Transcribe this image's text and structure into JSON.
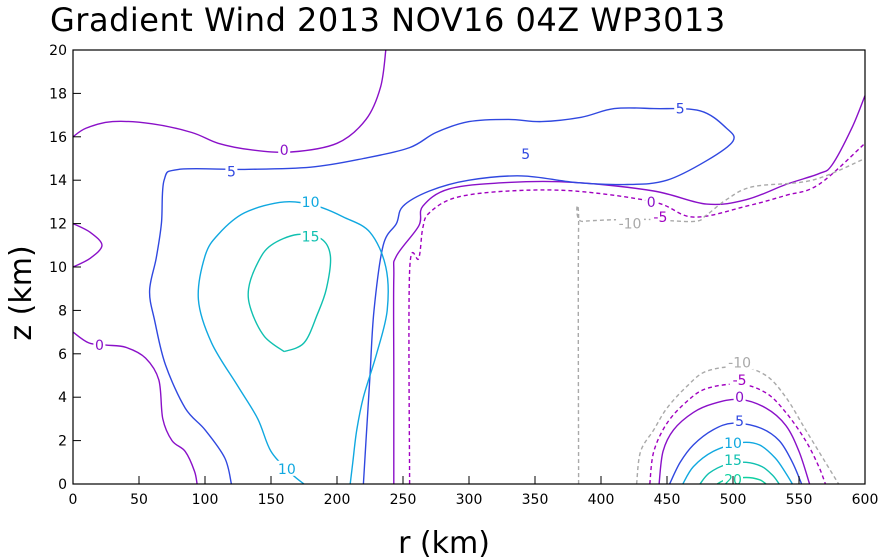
{
  "chart_data": {
    "type": "contour",
    "title": "Gradient Wind 2013 NOV16 04Z  WP3013",
    "xlabel": "r (km)",
    "ylabel": "z (km)",
    "xlim": [
      0,
      600
    ],
    "ylim": [
      0,
      20
    ],
    "xticks": [
      "0",
      "50",
      "100",
      "150",
      "200",
      "250",
      "300",
      "350",
      "400",
      "450",
      "500",
      "550",
      "600"
    ],
    "yticks": [
      "0",
      "2",
      "4",
      "6",
      "8",
      "10",
      "12",
      "14",
      "16",
      "18",
      "20"
    ],
    "levels": [
      -10,
      -5,
      0,
      5,
      10,
      15,
      20
    ],
    "level_colors": {
      "-10": "#a9a9a9",
      "-5": "#a000c0",
      "0": "#8a10c8",
      "5": "#3048e0",
      "10": "#10a8e0",
      "15": "#10c0b0",
      "20": "#10d0a0"
    },
    "contours": [
      {
        "level": 0,
        "label": "0",
        "dashed": false,
        "color": "#8a10c8",
        "points": [
          [
            0,
            16
          ],
          [
            10,
            16.4
          ],
          [
            30,
            16.7
          ],
          [
            60,
            16.6
          ],
          [
            90,
            16.2
          ],
          [
            110,
            15.7
          ],
          [
            135,
            15.4
          ],
          [
            165,
            15.3
          ],
          [
            200,
            15.7
          ],
          [
            222,
            16.8
          ],
          [
            233,
            18.3
          ],
          [
            237,
            20
          ]
        ],
        "labels": [
          {
            "text": "0",
            "x": 160,
            "y": 15.4
          }
        ]
      },
      {
        "level": 0,
        "label": "0",
        "dashed": false,
        "color": "#8a10c8",
        "points": [
          [
            0,
            12.0
          ],
          [
            13,
            11.6
          ],
          [
            22,
            11.0
          ],
          [
            13,
            10.4
          ],
          [
            0,
            10.0
          ]
        ],
        "labels": []
      },
      {
        "level": 0,
        "label": "0",
        "dashed": false,
        "color": "#8a10c8",
        "points": [
          [
            0,
            7
          ],
          [
            12,
            6.5
          ],
          [
            25,
            6.4
          ],
          [
            40,
            6.3
          ],
          [
            55,
            5.8
          ],
          [
            65,
            4.8
          ],
          [
            68,
            3.0
          ],
          [
            75,
            2.0
          ],
          [
            85,
            1.5
          ],
          [
            92,
            0.6
          ],
          [
            94,
            0
          ]
        ],
        "labels": [
          {
            "text": "0",
            "x": 20,
            "y": 6.4
          }
        ]
      },
      {
        "level": 0,
        "label": "0",
        "dashed": false,
        "color": "#8a10c8",
        "points": [
          [
            243,
            0
          ],
          [
            243,
            5
          ],
          [
            243,
            9.5
          ],
          [
            245,
            10.5
          ],
          [
            262,
            11.9
          ],
          [
            265,
            12.8
          ],
          [
            285,
            13.6
          ],
          [
            330,
            13.9
          ],
          [
            380,
            13.9
          ],
          [
            440,
            13.5
          ],
          [
            480,
            12.9
          ],
          [
            510,
            13.1
          ],
          [
            540,
            13.8
          ],
          [
            565,
            14.3
          ],
          [
            575,
            14.7
          ],
          [
            590,
            16.4
          ],
          [
            600,
            17.9
          ]
        ],
        "labels": [
          {
            "text": "0",
            "x": 438,
            "y": 13.0
          }
        ]
      },
      {
        "level": -5,
        "label": "-5",
        "dashed": true,
        "color": "#a000c0",
        "points": [
          [
            255,
            0
          ],
          [
            255,
            9.8
          ],
          [
            262,
            10.4
          ],
          [
            265,
            11.8
          ],
          [
            270,
            12.5
          ],
          [
            290,
            13.2
          ],
          [
            330,
            13.5
          ],
          [
            380,
            13.5
          ],
          [
            440,
            13.0
          ],
          [
            470,
            12.3
          ],
          [
            510,
            12.8
          ],
          [
            540,
            13.3
          ],
          [
            565,
            13.8
          ],
          [
            600,
            15.7
          ]
        ],
        "labels": [
          {
            "text": "-5",
            "x": 445,
            "y": 12.3
          }
        ]
      },
      {
        "level": -10,
        "label": "-10",
        "dashed": true,
        "color": "#a9a9a9",
        "points": [
          [
            383,
            0
          ],
          [
            383,
            11.9
          ],
          [
            386,
            12.1
          ],
          [
            430,
            12.2
          ],
          [
            470,
            12.1
          ],
          [
            480,
            12.4
          ],
          [
            495,
            13.1
          ],
          [
            515,
            13.7
          ],
          [
            560,
            14.0
          ],
          [
            600,
            15.0
          ]
        ],
        "labels": [
          {
            "text": "-10",
            "x": 422,
            "y": 12.0
          }
        ]
      },
      {
        "level": 5,
        "label": "5",
        "dashed": false,
        "color": "#3048e0",
        "points": [
          [
            120,
            0
          ],
          [
            115,
            1.2
          ],
          [
            100,
            2.5
          ],
          [
            85,
            3.5
          ],
          [
            70,
            5.5
          ],
          [
            62,
            7.5
          ],
          [
            58,
            8.9
          ],
          [
            63,
            10.4
          ],
          [
            67,
            12.0
          ],
          [
            69,
            14.0
          ],
          [
            80,
            14.5
          ],
          [
            130,
            14.5
          ],
          [
            180,
            14.6
          ],
          [
            220,
            15.0
          ],
          [
            255,
            15.5
          ],
          [
            275,
            16.2
          ],
          [
            300,
            16.7
          ],
          [
            330,
            16.8
          ],
          [
            355,
            16.7
          ],
          [
            385,
            16.9
          ],
          [
            410,
            17.3
          ],
          [
            440,
            17.3
          ],
          [
            475,
            17.2
          ],
          [
            495,
            16.4
          ],
          [
            500,
            15.8
          ],
          [
            480,
            14.9
          ],
          [
            450,
            14.0
          ],
          [
            420,
            13.8
          ],
          [
            380,
            13.9
          ],
          [
            340,
            14.2
          ],
          [
            300,
            14.0
          ],
          [
            270,
            13.5
          ],
          [
            250,
            12.8
          ],
          [
            245,
            12.0
          ],
          [
            235,
            11.0
          ],
          [
            228,
            8.0
          ],
          [
            225,
            5.0
          ],
          [
            222,
            2.0
          ],
          [
            220,
            0
          ]
        ],
        "labels": [
          {
            "text": "5",
            "x": 120,
            "y": 14.4
          },
          {
            "text": "5",
            "x": 343,
            "y": 15.2
          },
          {
            "text": "5",
            "x": 460,
            "y": 17.3
          }
        ]
      },
      {
        "level": 10,
        "label": "10",
        "dashed": false,
        "color": "#10a8e0",
        "points": [
          [
            175,
            0
          ],
          [
            165,
            0.5
          ],
          [
            150,
            1.5
          ],
          [
            140,
            3.0
          ],
          [
            125,
            4.5
          ],
          [
            105,
            6.5
          ],
          [
            95,
            8.5
          ],
          [
            100,
            10.5
          ],
          [
            110,
            11.5
          ],
          [
            130,
            12.5
          ],
          [
            160,
            13.0
          ],
          [
            185,
            12.8
          ],
          [
            205,
            12.3
          ],
          [
            225,
            11.6
          ],
          [
            237,
            10.0
          ],
          [
            238,
            8.0
          ],
          [
            230,
            6.0
          ],
          [
            220,
            4.0
          ],
          [
            215,
            2.5
          ],
          [
            212,
            1.0
          ],
          [
            210,
            0
          ]
        ],
        "labels": [
          {
            "text": "10",
            "x": 180,
            "y": 13.0
          },
          {
            "text": "10",
            "x": 162,
            "y": 0.7
          }
        ]
      },
      {
        "level": 15,
        "label": "15",
        "dashed": false,
        "color": "#10c0b0",
        "points": [
          [
            160,
            6.1
          ],
          [
            145,
            6.8
          ],
          [
            135,
            8.0
          ],
          [
            133,
            9.0
          ],
          [
            140,
            10.2
          ],
          [
            150,
            11.0
          ],
          [
            170,
            11.5
          ],
          [
            188,
            11.3
          ],
          [
            195,
            10.5
          ],
          [
            192,
            9.0
          ],
          [
            185,
            7.8
          ],
          [
            175,
            6.5
          ],
          [
            160,
            6.1
          ]
        ],
        "labels": [
          {
            "text": "15",
            "x": 180,
            "y": 11.4
          }
        ]
      },
      {
        "level": -10,
        "label": "-10",
        "dashed": true,
        "color": "#a9a9a9",
        "points": [
          [
            427,
            0
          ],
          [
            430,
            1.5
          ],
          [
            440,
            2.5
          ],
          [
            450,
            3.5
          ],
          [
            465,
            4.5
          ],
          [
            480,
            5.2
          ],
          [
            505,
            5.4
          ],
          [
            525,
            5.0
          ],
          [
            540,
            4.0
          ],
          [
            555,
            2.5
          ],
          [
            570,
            1.0
          ],
          [
            580,
            0
          ]
        ],
        "labels": [
          {
            "text": "-10",
            "x": 505,
            "y": 5.6
          }
        ]
      },
      {
        "level": -5,
        "label": "-5",
        "dashed": true,
        "color": "#a000c0",
        "points": [
          [
            437,
            0
          ],
          [
            440,
            1.5
          ],
          [
            450,
            2.8
          ],
          [
            465,
            3.8
          ],
          [
            480,
            4.4
          ],
          [
            505,
            4.6
          ],
          [
            525,
            4.2
          ],
          [
            540,
            3.3
          ],
          [
            555,
            2.0
          ],
          [
            565,
            0.8
          ],
          [
            570,
            0
          ]
        ],
        "labels": [
          {
            "text": "-5",
            "x": 505,
            "y": 4.8
          }
        ]
      },
      {
        "level": 0,
        "label": "0",
        "dashed": false,
        "color": "#8a10c8",
        "points": [
          [
            444,
            0
          ],
          [
            447,
            1.5
          ],
          [
            455,
            2.5
          ],
          [
            470,
            3.3
          ],
          [
            485,
            3.7
          ],
          [
            505,
            3.9
          ],
          [
            525,
            3.5
          ],
          [
            540,
            2.7
          ],
          [
            550,
            1.5
          ],
          [
            558,
            0
          ]
        ],
        "labels": [
          {
            "text": "0",
            "x": 505,
            "y": 4.0
          }
        ]
      },
      {
        "level": 5,
        "label": "5",
        "dashed": false,
        "color": "#3048e0",
        "points": [
          [
            452,
            0
          ],
          [
            460,
            1.0
          ],
          [
            470,
            1.8
          ],
          [
            485,
            2.5
          ],
          [
            500,
            2.8
          ],
          [
            520,
            2.6
          ],
          [
            535,
            2.0
          ],
          [
            545,
            1.0
          ],
          [
            552,
            0
          ]
        ],
        "labels": [
          {
            "text": "5",
            "x": 505,
            "y": 2.9
          }
        ]
      },
      {
        "level": 10,
        "label": "10",
        "dashed": false,
        "color": "#10a8e0",
        "points": [
          [
            462,
            0
          ],
          [
            470,
            0.8
          ],
          [
            485,
            1.5
          ],
          [
            505,
            1.9
          ],
          [
            520,
            1.8
          ],
          [
            532,
            1.2
          ],
          [
            540,
            0.5
          ],
          [
            545,
            0
          ]
        ],
        "labels": [
          {
            "text": "10",
            "x": 500,
            "y": 1.9
          }
        ]
      },
      {
        "level": 15,
        "label": "15",
        "dashed": false,
        "color": "#10c0b0",
        "points": [
          [
            475,
            0
          ],
          [
            482,
            0.5
          ],
          [
            495,
            0.9
          ],
          [
            510,
            1.0
          ],
          [
            522,
            0.8
          ],
          [
            530,
            0.4
          ],
          [
            535,
            0
          ]
        ],
        "labels": [
          {
            "text": "15",
            "x": 500,
            "y": 1.1
          }
        ]
      },
      {
        "level": 20,
        "label": "20",
        "dashed": false,
        "color": "#10d0a0",
        "points": [
          [
            488,
            0
          ],
          [
            495,
            0.2
          ],
          [
            510,
            0.3
          ],
          [
            520,
            0.2
          ],
          [
            525,
            0
          ]
        ],
        "labels": [
          {
            "text": "20",
            "x": 500,
            "y": 0.2
          }
        ]
      }
    ]
  }
}
